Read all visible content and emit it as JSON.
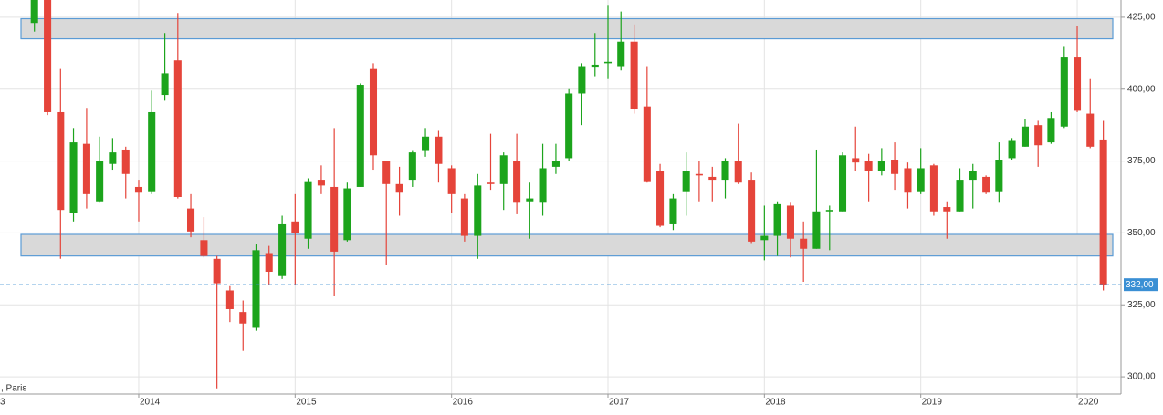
{
  "chart_data": {
    "type": "candlestick",
    "x": [
      2013.333,
      2013.417,
      2013.5,
      2013.583,
      2013.667,
      2013.75,
      2013.833,
      2013.917,
      2014,
      2014.083,
      2014.167,
      2014.25,
      2014.333,
      2014.417,
      2014.5,
      2014.583,
      2014.667,
      2014.75,
      2014.833,
      2014.917,
      2015,
      2015.083,
      2015.167,
      2015.25,
      2015.333,
      2015.417,
      2015.5,
      2015.583,
      2015.667,
      2015.75,
      2015.833,
      2015.917,
      2016,
      2016.083,
      2016.167,
      2016.25,
      2016.333,
      2016.417,
      2016.5,
      2016.583,
      2016.667,
      2016.75,
      2016.833,
      2016.917,
      2017,
      2017.083,
      2017.167,
      2017.25,
      2017.333,
      2017.417,
      2017.5,
      2017.583,
      2017.667,
      2017.75,
      2017.833,
      2017.917,
      2018,
      2018.083,
      2018.167,
      2018.25,
      2018.333,
      2018.417,
      2018.5,
      2018.583,
      2018.667,
      2018.75,
      2018.833,
      2018.917,
      2019,
      2019.083,
      2019.167,
      2019.25,
      2019.333,
      2019.417,
      2019.5,
      2019.583,
      2019.667,
      2019.75,
      2019.833,
      2019.917,
      2020,
      2020.083,
      2020.167
    ],
    "open": [
      423,
      433,
      392,
      357,
      381,
      361,
      374,
      379,
      366,
      364.5,
      398,
      410,
      358.5,
      347.5,
      341,
      330,
      322.5,
      317,
      343,
      335,
      354,
      348,
      368.5,
      366,
      347.5,
      366,
      407,
      375,
      367,
      368.5,
      378.5,
      383.5,
      372.5,
      362,
      349,
      367.5,
      367,
      375,
      361,
      360.5,
      373,
      376,
      398.5,
      407.5,
      409,
      408,
      416.5,
      394,
      371.5,
      353,
      364.5,
      370.5,
      369.5,
      368.5,
      375,
      368.5,
      347.5,
      349,
      359.5,
      348,
      344.5,
      357.5,
      357.5,
      376,
      375,
      371.5,
      375.5,
      372.5,
      364.5,
      373.5,
      359,
      357.5,
      368.5,
      369.5,
      364.5,
      376,
      380,
      387.5,
      381.5,
      387,
      411,
      391.5,
      382.5
    ],
    "high": [
      436,
      436,
      407,
      386.5,
      393.5,
      383.5,
      383,
      380,
      368.5,
      399.5,
      419.5,
      426.5,
      363.5,
      355.5,
      342,
      331.5,
      326.5,
      346,
      345.5,
      356,
      363.5,
      369,
      373.5,
      386.5,
      367.5,
      402,
      409,
      375,
      373,
      378.5,
      386.5,
      385.5,
      373.5,
      363.5,
      370.5,
      384.5,
      378,
      384.5,
      367.5,
      381,
      381,
      400,
      409,
      419.5,
      429,
      427,
      422.5,
      408,
      374,
      363.5,
      378,
      375,
      373,
      376,
      388,
      371,
      359.5,
      361,
      360.5,
      354,
      379,
      359.5,
      378,
      387,
      377.5,
      379.5,
      381.5,
      374.5,
      379.5,
      374,
      361,
      372.5,
      374,
      370,
      381.5,
      383,
      389.5,
      389,
      392,
      415,
      422,
      403.5,
      389
    ],
    "low": [
      420,
      391,
      341,
      354,
      358.5,
      360.5,
      372,
      362,
      354,
      363.5,
      396,
      362,
      348.5,
      341.5,
      296,
      319,
      309,
      316,
      332,
      334,
      332,
      344.5,
      363.5,
      328,
      347,
      366,
      372,
      339,
      356,
      366,
      376.5,
      367.5,
      357,
      347,
      341,
      365,
      358,
      356.5,
      348,
      356,
      370.5,
      375,
      387.5,
      404.5,
      403.5,
      406.5,
      391.5,
      367.5,
      352,
      351,
      356,
      361,
      361,
      362,
      367,
      346.5,
      340.5,
      342,
      341.5,
      333,
      344.5,
      344,
      357.5,
      371.5,
      361,
      370,
      365,
      358.5,
      363.5,
      356,
      348,
      357.5,
      358.5,
      363.5,
      360.5,
      375.5,
      380,
      373,
      381,
      386.5,
      392,
      379.5,
      330
    ],
    "close": [
      433,
      392,
      358,
      381.5,
      363.5,
      375,
      378,
      370.5,
      364,
      392,
      405.5,
      362.5,
      350.5,
      342,
      332.5,
      323.5,
      318.5,
      344,
      336.5,
      353,
      350,
      368,
      366.5,
      343.5,
      365.5,
      401.5,
      377,
      367,
      364,
      378,
      383.5,
      374,
      363.5,
      349,
      366.5,
      367,
      377,
      360.5,
      362,
      372.5,
      375,
      398.5,
      408,
      408.5,
      409.5,
      416.5,
      393,
      368,
      352.5,
      362,
      371.5,
      370,
      368.5,
      375,
      367.5,
      347,
      349,
      360,
      348,
      344.5,
      357.5,
      358,
      377,
      374.5,
      371.5,
      375,
      370.5,
      364,
      372.5,
      357.5,
      357.5,
      368.5,
      371.5,
      364,
      375.5,
      382,
      387,
      380.5,
      390,
      411,
      392.5,
      380,
      332
    ],
    "up_color": "#1ca41c",
    "down_color": "#e5443a",
    "xlim": [
      2013.113,
      2020.28
    ],
    "xticks": [
      2014,
      2015,
      2016,
      2017,
      2018,
      2019,
      2020
    ],
    "ylim": [
      294,
      431
    ],
    "yticks": [
      {
        "value": 300,
        "label": "300,00"
      },
      {
        "value": 325,
        "label": "325,00"
      },
      {
        "value": 350,
        "label": "350,00"
      },
      {
        "value": 375,
        "label": "375,00"
      },
      {
        "value": 400,
        "label": "400,00"
      },
      {
        "value": 425,
        "label": "425,00"
      }
    ],
    "grid": true,
    "zones": [
      {
        "low": 417.5,
        "high": 424.5
      },
      {
        "low": 342,
        "high": 349.5
      }
    ],
    "zone_color": "#d9d9d9",
    "zone_border": "#5b9bd5",
    "last_price": {
      "value": 332,
      "label": "332,00"
    },
    "last_price_color": "#3a8fd4",
    "annotations": [
      "3",
      ", Paris"
    ]
  }
}
